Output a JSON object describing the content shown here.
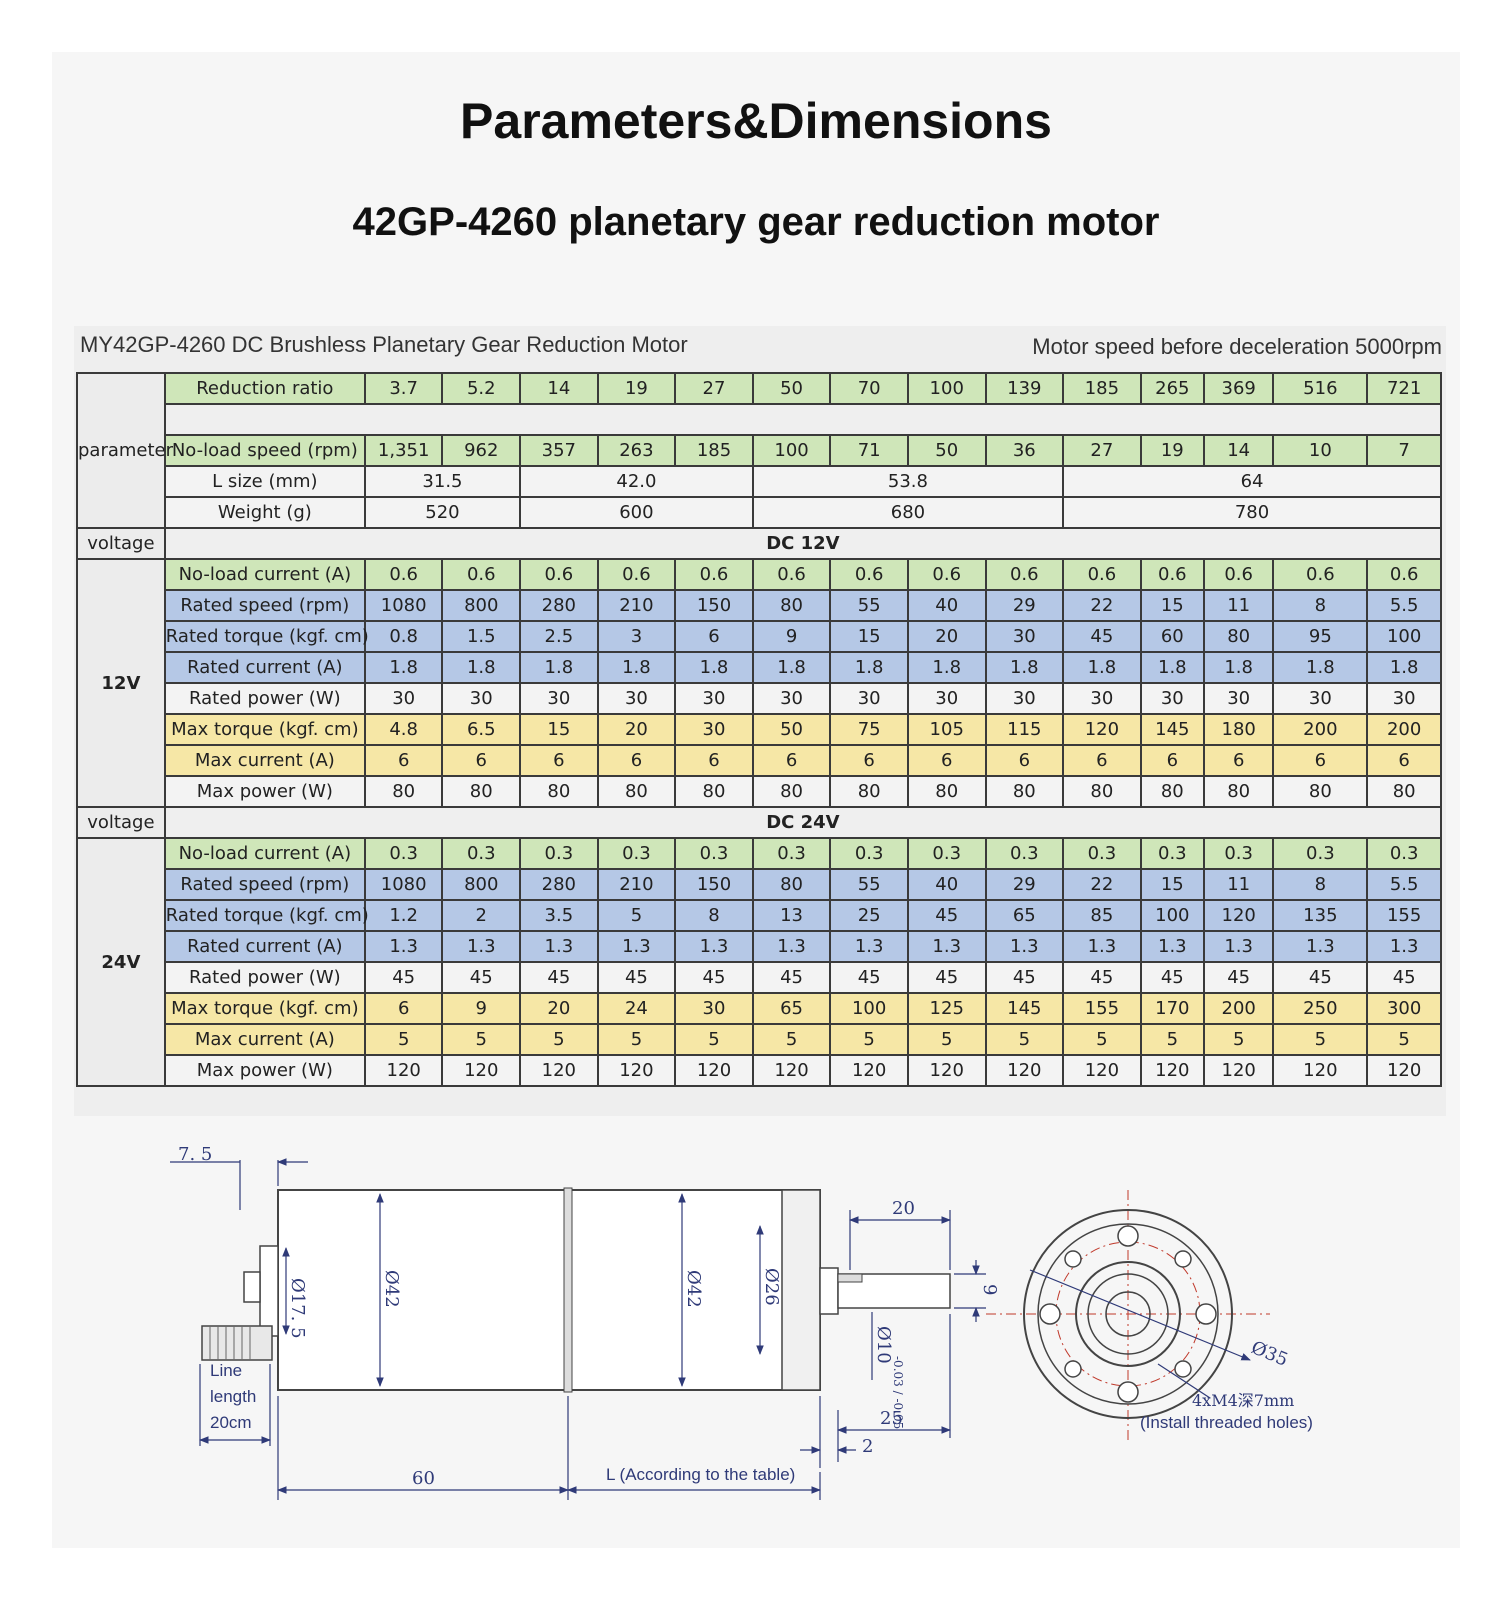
{
  "title": "Parameters&Dimensions",
  "subtitle": "42GP-4260 planetary gear reduction motor",
  "sheet": {
    "caption_left": "MY42GP-4260 DC Brushless Planetary Gear Reduction Motor",
    "caption_right": "Motor speed before deceleration 5000rpm",
    "section_parameter": "parameter",
    "reduction_label": "Reduction ratio",
    "ratios": [
      "3.7",
      "5.2",
      "14",
      "19",
      "27",
      "50",
      "70",
      "100",
      "139",
      "185",
      "265",
      "369",
      "516",
      "721"
    ],
    "noload_speed_label": "No-load speed (rpm)",
    "noload_speed": [
      "1,351",
      "962",
      "357",
      "263",
      "185",
      "100",
      "71",
      "50",
      "36",
      "27",
      "19",
      "14",
      "10",
      "7"
    ],
    "lsize_label": "L size (mm)",
    "lsize": [
      "31.5",
      "42.0",
      "53.8",
      "64"
    ],
    "weight_label": "Weight (g)",
    "weight": [
      "520",
      "600",
      "680",
      "780"
    ],
    "voltage_label": "voltage",
    "dc12_label": "DC 12V",
    "dc24_label": "DC 24V",
    "v12_label": "12V",
    "v24_label": "24V",
    "row_labels": {
      "noload_current": "No-load current (A)",
      "rated_speed": "Rated speed (rpm)",
      "rated_torque": "Rated torque (kgf. cm)",
      "rated_current": "Rated current (A)",
      "rated_power": "Rated power (W)",
      "max_torque": "Max torque (kgf. cm)",
      "max_current": "Max current (A)",
      "max_power": "Max power (W)"
    },
    "v12": {
      "noload_current": [
        "0.6",
        "0.6",
        "0.6",
        "0.6",
        "0.6",
        "0.6",
        "0.6",
        "0.6",
        "0.6",
        "0.6",
        "0.6",
        "0.6",
        "0.6",
        "0.6"
      ],
      "rated_speed": [
        "1080",
        "800",
        "280",
        "210",
        "150",
        "80",
        "55",
        "40",
        "29",
        "22",
        "15",
        "11",
        "8",
        "5.5"
      ],
      "rated_torque": [
        "0.8",
        "1.5",
        "2.5",
        "3",
        "6",
        "9",
        "15",
        "20",
        "30",
        "45",
        "60",
        "80",
        "95",
        "100"
      ],
      "rated_current": [
        "1.8",
        "1.8",
        "1.8",
        "1.8",
        "1.8",
        "1.8",
        "1.8",
        "1.8",
        "1.8",
        "1.8",
        "1.8",
        "1.8",
        "1.8",
        "1.8"
      ],
      "rated_power": [
        "30",
        "30",
        "30",
        "30",
        "30",
        "30",
        "30",
        "30",
        "30",
        "30",
        "30",
        "30",
        "30",
        "30"
      ],
      "max_torque": [
        "4.8",
        "6.5",
        "15",
        "20",
        "30",
        "50",
        "75",
        "105",
        "115",
        "120",
        "145",
        "180",
        "200",
        "200"
      ],
      "max_current": [
        "6",
        "6",
        "6",
        "6",
        "6",
        "6",
        "6",
        "6",
        "6",
        "6",
        "6",
        "6",
        "6",
        "6"
      ],
      "max_power": [
        "80",
        "80",
        "80",
        "80",
        "80",
        "80",
        "80",
        "80",
        "80",
        "80",
        "80",
        "80",
        "80",
        "80"
      ]
    },
    "v24": {
      "noload_current": [
        "0.3",
        "0.3",
        "0.3",
        "0.3",
        "0.3",
        "0.3",
        "0.3",
        "0.3",
        "0.3",
        "0.3",
        "0.3",
        "0.3",
        "0.3",
        "0.3"
      ],
      "rated_speed": [
        "1080",
        "800",
        "280",
        "210",
        "150",
        "80",
        "55",
        "40",
        "29",
        "22",
        "15",
        "11",
        "8",
        "5.5"
      ],
      "rated_torque": [
        "1.2",
        "2",
        "3.5",
        "5",
        "8",
        "13",
        "25",
        "45",
        "65",
        "85",
        "100",
        "120",
        "135",
        "155"
      ],
      "rated_current": [
        "1.3",
        "1.3",
        "1.3",
        "1.3",
        "1.3",
        "1.3",
        "1.3",
        "1.3",
        "1.3",
        "1.3",
        "1.3",
        "1.3",
        "1.3",
        "1.3"
      ],
      "rated_power": [
        "45",
        "45",
        "45",
        "45",
        "45",
        "45",
        "45",
        "45",
        "45",
        "45",
        "45",
        "45",
        "45",
        "45"
      ],
      "max_torque": [
        "6",
        "9",
        "20",
        "24",
        "30",
        "65",
        "100",
        "125",
        "145",
        "155",
        "170",
        "200",
        "250",
        "300"
      ],
      "max_current": [
        "5",
        "5",
        "5",
        "5",
        "5",
        "5",
        "5",
        "5",
        "5",
        "5",
        "5",
        "5",
        "5",
        "5"
      ],
      "max_power": [
        "120",
        "120",
        "120",
        "120",
        "120",
        "120",
        "120",
        "120",
        "120",
        "120",
        "120",
        "120",
        "120",
        "120"
      ]
    }
  },
  "drawing": {
    "dim_7_5": "7. 5",
    "dim_phi17_5": "Ø17. 5",
    "dim_phi42_a": "Ø42",
    "dim_phi42_b": "Ø42",
    "dim_phi26": "Ø26",
    "dim_phi10": "Ø10",
    "dim_tol": "-0.03 / -0.05",
    "dim_20": "20",
    "dim_9": "9",
    "dim_25": "25",
    "dim_2": "2",
    "dim_60": "60",
    "dim_L": "L (According to the table)",
    "line_length_1": "Line",
    "line_length_2": "length",
    "line_length_3": "20cm",
    "dim_phi35": "Ø35",
    "holes": "4xM4深7mm",
    "holes_note": "(Install threaded holes)",
    "colors": {
      "dimension": "#2f3a78",
      "center": "#c0392b",
      "outline": "#444444"
    }
  }
}
